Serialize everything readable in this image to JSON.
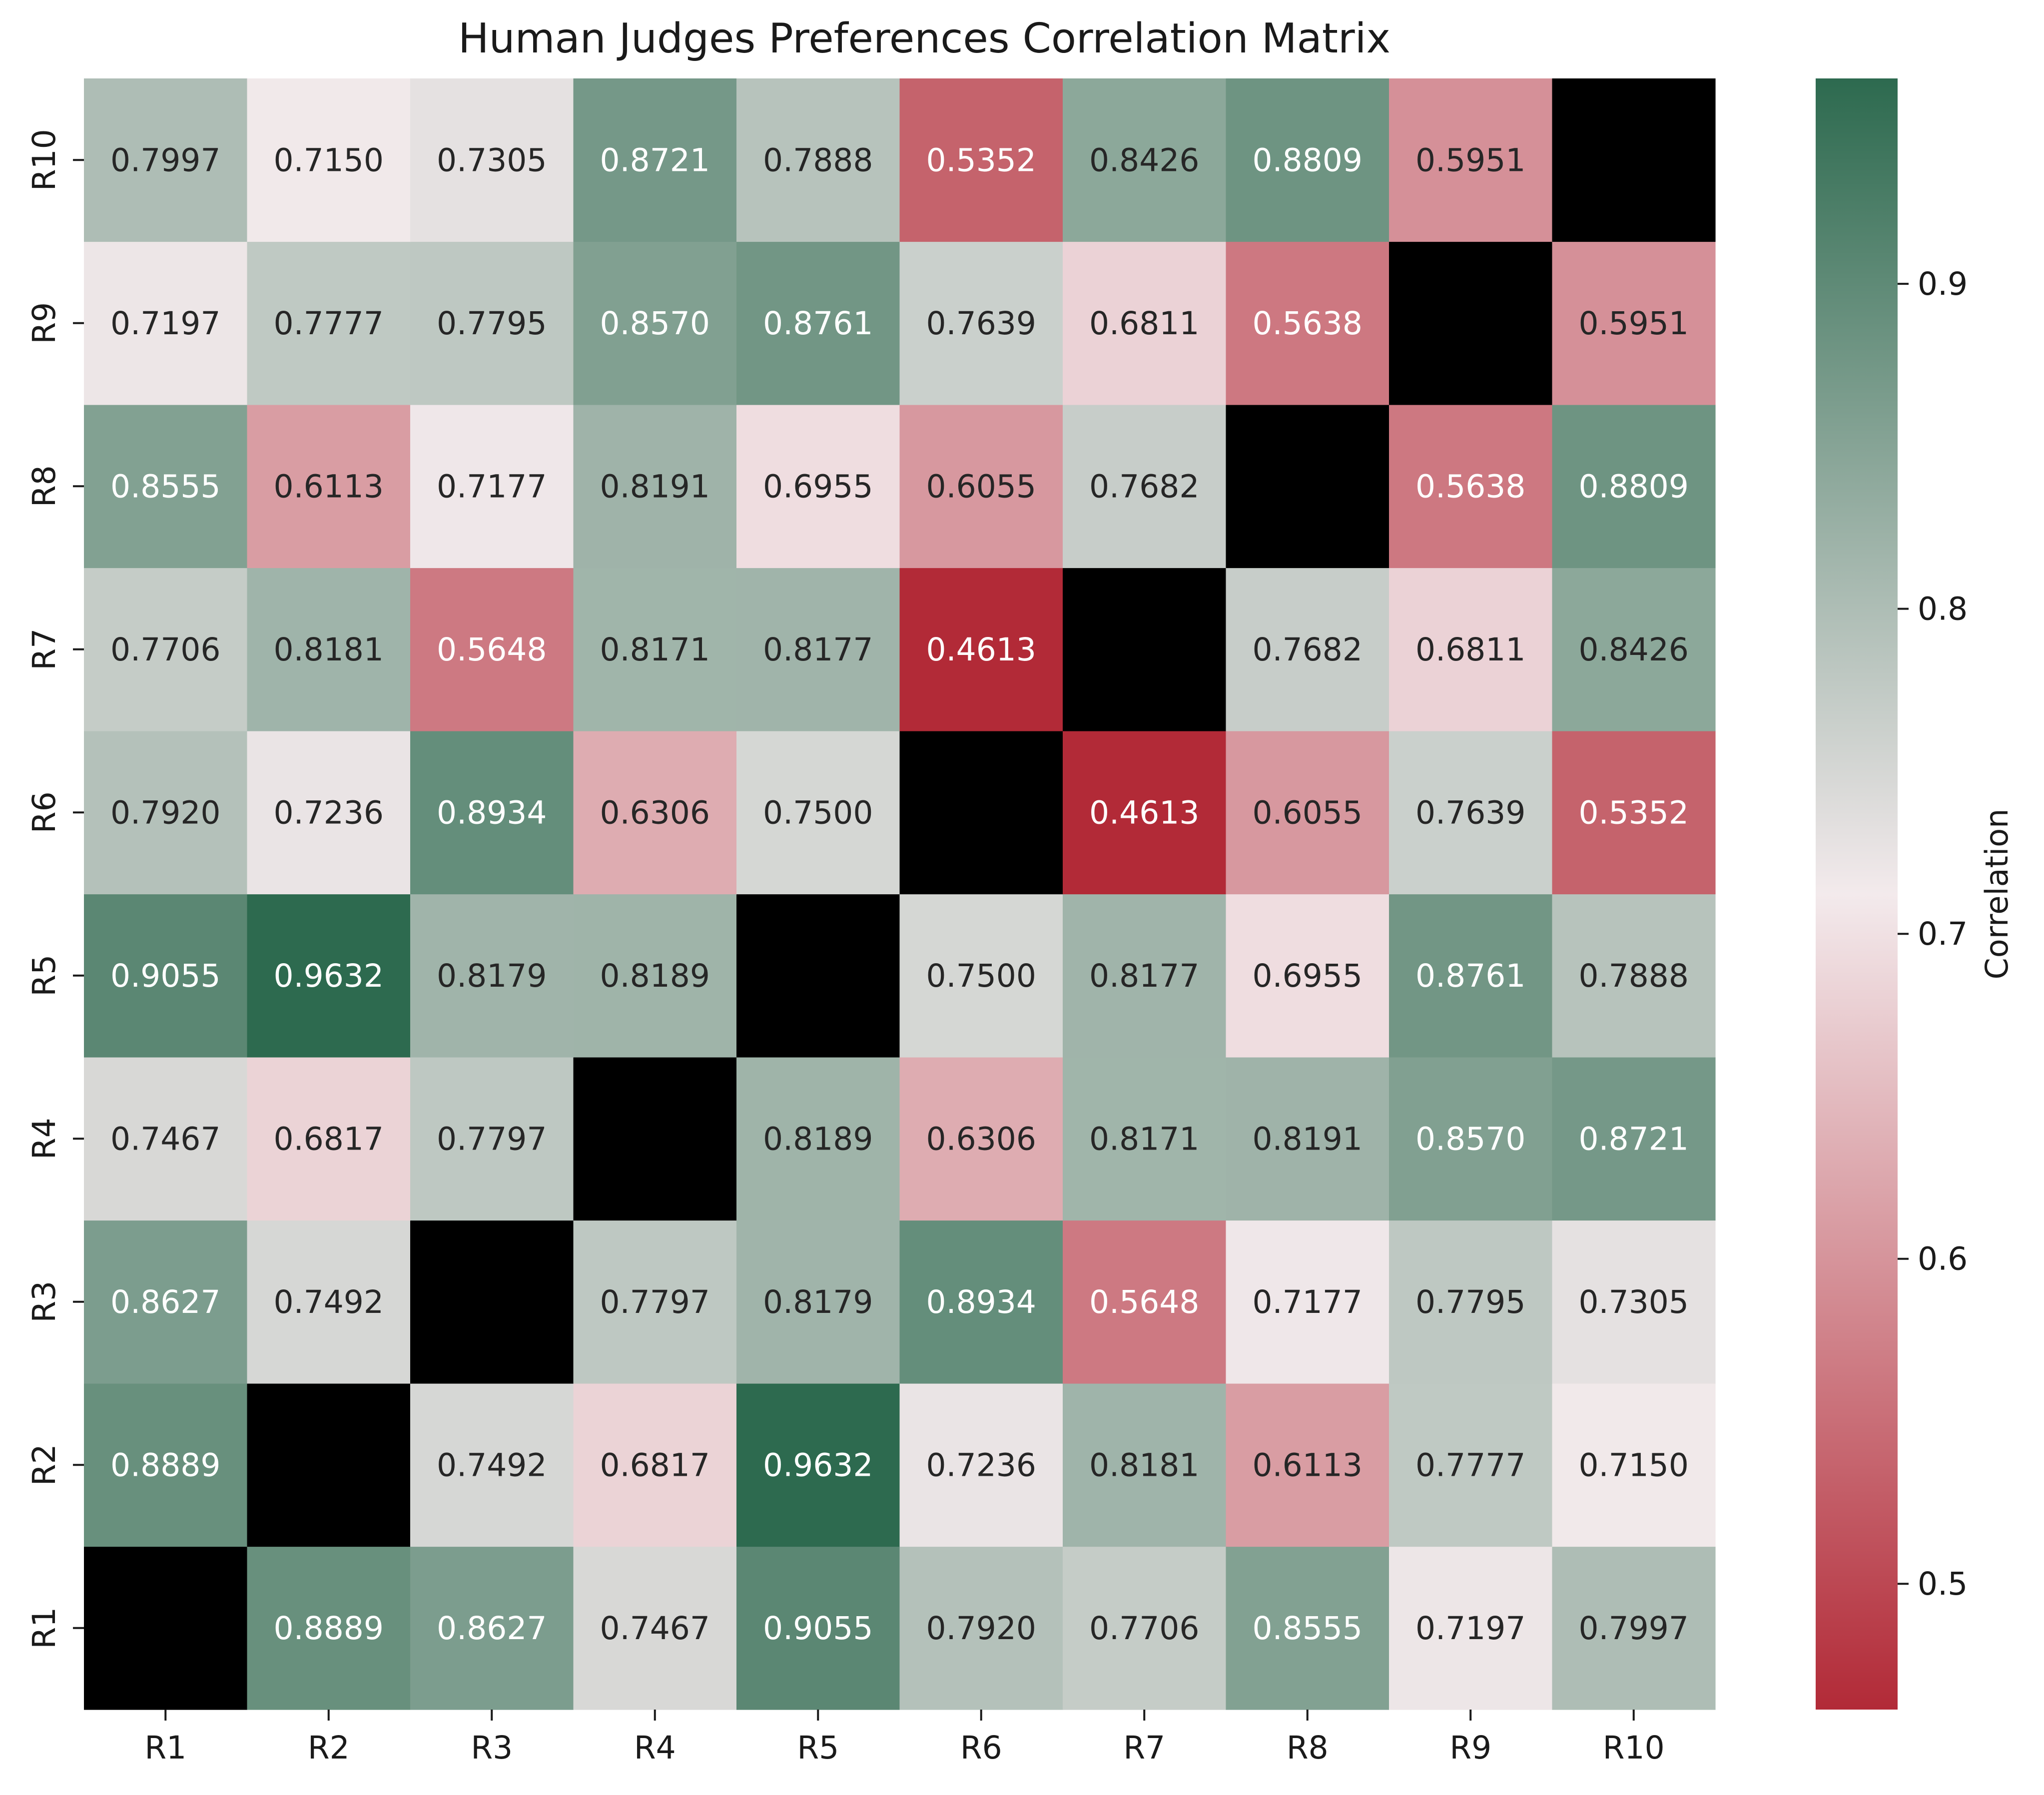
{
  "chart_data": {
    "type": "heatmap",
    "title": "Human Judges Preferences Correlation Matrix",
    "x_categories": [
      "R1",
      "R2",
      "R3",
      "R4",
      "R5",
      "R6",
      "R7",
      "R8",
      "R9",
      "R10"
    ],
    "y_categories": [
      "R1",
      "R2",
      "R3",
      "R4",
      "R5",
      "R6",
      "R7",
      "R8",
      "R9",
      "R10"
    ],
    "y_order": "bottom-to-top",
    "diagonal": "masked (black)",
    "matrix": [
      [
        null,
        0.8889,
        0.8627,
        0.7467,
        0.9055,
        0.792,
        0.7706,
        0.8555,
        0.7197,
        0.7997
      ],
      [
        0.8889,
        null,
        0.7492,
        0.6817,
        0.9632,
        0.7236,
        0.8181,
        0.6113,
        0.7777,
        0.715
      ],
      [
        0.8627,
        0.7492,
        null,
        0.7797,
        0.8179,
        0.8934,
        0.5648,
        0.7177,
        0.7795,
        0.7305
      ],
      [
        0.7467,
        0.6817,
        0.7797,
        null,
        0.8189,
        0.6306,
        0.8171,
        0.8191,
        0.857,
        0.8721
      ],
      [
        0.9055,
        0.9632,
        0.8179,
        0.8189,
        null,
        0.75,
        0.8177,
        0.6955,
        0.8761,
        0.7888
      ],
      [
        0.792,
        0.7236,
        0.8934,
        0.6306,
        0.75,
        null,
        0.4613,
        0.6055,
        0.7639,
        0.5352
      ],
      [
        0.7706,
        0.8181,
        0.5648,
        0.8171,
        0.8177,
        0.4613,
        null,
        0.7682,
        0.6811,
        0.8426
      ],
      [
        0.8555,
        0.6113,
        0.7177,
        0.8191,
        0.6955,
        0.6055,
        0.7682,
        null,
        0.5638,
        0.8809
      ],
      [
        0.7197,
        0.7777,
        0.7795,
        0.857,
        0.8761,
        0.7639,
        0.6811,
        0.5638,
        null,
        0.5951
      ],
      [
        0.7997,
        0.715,
        0.7305,
        0.8721,
        0.7888,
        0.5352,
        0.8426,
        0.8809,
        0.5951,
        null
      ]
    ],
    "value_format": "4 decimals",
    "colorbar": {
      "label": "Correlation",
      "range": [
        0.4613,
        0.9632
      ],
      "ticks": [
        0.5,
        0.6,
        0.7,
        0.8,
        0.9
      ],
      "tick_labels": [
        "0.5",
        "0.6",
        "0.7",
        "0.8",
        "0.9"
      ],
      "colormap": "diverging red-white-green",
      "color_low": "#b22a37",
      "color_mid": "#f3eaec",
      "color_high": "#2d6a4f"
    },
    "mask_color": "#000000"
  }
}
